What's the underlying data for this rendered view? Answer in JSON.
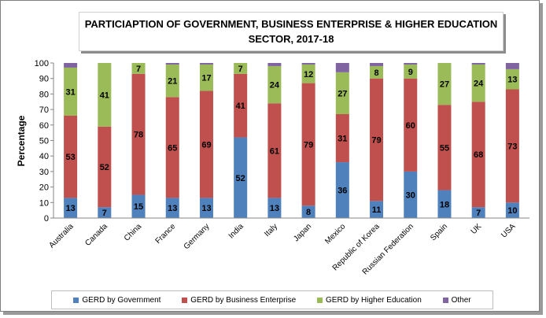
{
  "chart_data": {
    "type": "bar",
    "stacked": true,
    "title_line1": "PARTICIAPTION OF GOVERNMENT, BUSINESS ENTERPRISE & HIGHER EDUCATION",
    "title_line2": "SECTOR, 2017-18",
    "xlabel": "",
    "ylabel": "Percentage",
    "ylim": [
      0,
      100
    ],
    "yticks": [
      0,
      10,
      20,
      30,
      40,
      50,
      60,
      70,
      80,
      90,
      100
    ],
    "grid": false,
    "legend_position": "bottom",
    "categories": [
      "Australia",
      "Canada",
      "China",
      "France",
      "Germany",
      "India",
      "Italy",
      "Japan",
      "Mexico",
      "Republic of Korea",
      "Russian Federation",
      "Spain",
      "UK",
      "USA"
    ],
    "series": [
      {
        "name": "GERD by Government",
        "color": "#4f81bd",
        "values": [
          13,
          7,
          15,
          13,
          13,
          52,
          13,
          8,
          36,
          11,
          30,
          18,
          7,
          10
        ],
        "labels": [
          "13",
          "7",
          "15",
          "13",
          "13",
          "52",
          "13",
          "8",
          "36",
          "11",
          "30",
          "18",
          "7",
          "10"
        ]
      },
      {
        "name": "GERD by Business Enterprise",
        "color": "#c0504d",
        "values": [
          53,
          52,
          78,
          65,
          69,
          41,
          61,
          79,
          31,
          79,
          60,
          55,
          68,
          73
        ],
        "labels": [
          "53",
          "52",
          "78",
          "65",
          "69",
          "41",
          "61",
          "79",
          "31",
          "79",
          "60",
          "55",
          "68",
          "73"
        ]
      },
      {
        "name": "GERD by Higher Education",
        "color": "#9bbb59",
        "values": [
          31,
          41,
          7,
          21,
          17,
          7,
          24,
          12,
          27,
          8,
          9,
          27,
          24,
          13
        ],
        "labels": [
          "31",
          "41",
          "7",
          "21",
          "17",
          "7",
          "24",
          "12",
          "27",
          "8",
          "9",
          "27",
          "24",
          "13"
        ]
      },
      {
        "name": "Other",
        "color": "#8064a2",
        "values": [
          3,
          0,
          0,
          1,
          1,
          0,
          2,
          1,
          6,
          2,
          1,
          0,
          1,
          4
        ],
        "labels": [
          "",
          "",
          "",
          "",
          "",
          "",
          "",
          "",
          "",
          "",
          "",
          "",
          "",
          ""
        ]
      }
    ]
  }
}
